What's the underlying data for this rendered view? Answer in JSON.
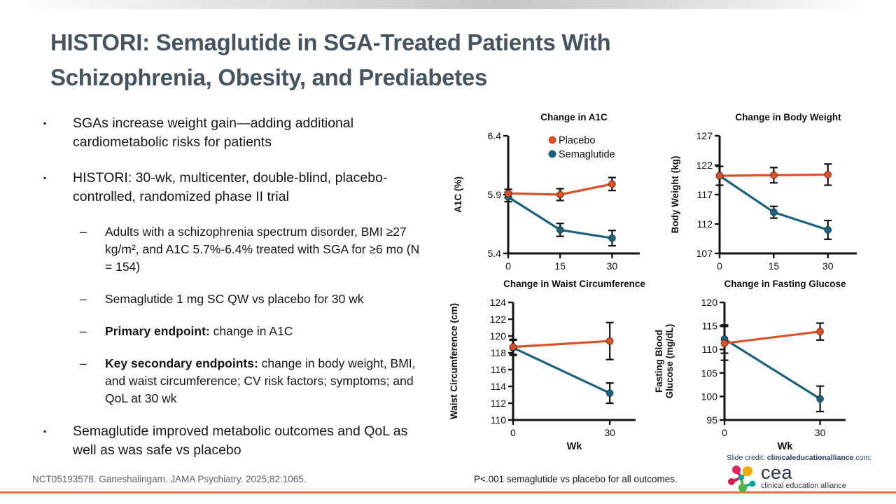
{
  "slide": {
    "title_line1": "HISTORI: Semaglutide in SGA-Treated Patients With",
    "title_line2": "Schizophrenia, Obesity, and Prediabetes",
    "title_color": "#45545E",
    "accent_color": "#E87244"
  },
  "bullets": [
    {
      "level": 1,
      "text": "SGAs increase weight gain—adding additional cardiometabolic risks for patients"
    },
    {
      "level": 1,
      "text": "HISTORI: 30-wk, multicenter, double-blind, placebo-controlled, randomized phase II trial"
    },
    {
      "level": 2,
      "text": "Adults with a schizophrenia spectrum disorder, BMI ≥27 kg/m², and A1C 5.7%-6.4% treated with SGA for ≥6 mo (N = 154)"
    },
    {
      "level": 2,
      "text": "Semaglutide 1 mg SC QW vs placebo for 30 wk"
    },
    {
      "level": 2,
      "bold": "Primary endpoint:",
      "text": " change in A1C"
    },
    {
      "level": 2,
      "bold": "Key secondary endpoints:",
      "text": " change in body weight, BMI, and waist circumference; CV risk factors; symptoms; and QoL at 30 wk"
    },
    {
      "level": 1,
      "text": "Semaglutide improved metabolic outcomes and QoL as well as was safe vs placebo"
    }
  ],
  "chart_data": [
    {
      "type": "line",
      "title": "Change in A1C",
      "ylabel": "A1C (%)",
      "xlabel": "",
      "x": [
        0,
        15,
        30
      ],
      "xticks": [
        "0",
        "15",
        "30"
      ],
      "ylim": [
        5.4,
        6.4
      ],
      "yticks": [
        5.4,
        5.9,
        6.4
      ],
      "legend": true,
      "legend_position": "top-right-inside",
      "grid": false,
      "series": [
        {
          "name": "Placebo",
          "color": "#D85128",
          "values": [
            5.91,
            5.9,
            5.99
          ],
          "err": [
            0.035,
            0.05,
            0.055
          ]
        },
        {
          "name": "Semaglutide",
          "color": "#1B617B",
          "values": [
            5.88,
            5.6,
            5.53
          ],
          "err": [
            0.04,
            0.055,
            0.065
          ]
        }
      ]
    },
    {
      "type": "line",
      "title": "Change in Body Weight",
      "ylabel": "Body Weight (kg)",
      "xlabel": "",
      "x": [
        0,
        15,
        30
      ],
      "xticks": [
        "0",
        "15",
        "30"
      ],
      "ylim": [
        107,
        127
      ],
      "yticks": [
        107,
        112,
        117,
        122,
        127
      ],
      "legend": false,
      "grid": false,
      "series": [
        {
          "name": "Placebo",
          "color": "#D85128",
          "values": [
            120.2,
            120.3,
            120.4
          ],
          "err": [
            1.6,
            1.3,
            1.8
          ]
        },
        {
          "name": "Semaglutide",
          "color": "#1B617B",
          "values": [
            120.2,
            114.0,
            111.0
          ],
          "err": [
            1.6,
            1.0,
            1.6
          ]
        }
      ]
    },
    {
      "type": "line",
      "title": "Change in Waist Circumference",
      "ylabel": "Waist Circumference (cm)",
      "xlabel": "Wk",
      "x": [
        0,
        30
      ],
      "xticks": [
        "0",
        "30"
      ],
      "ylim": [
        110,
        124
      ],
      "yticks": [
        110,
        112,
        114,
        116,
        118,
        120,
        122,
        124
      ],
      "legend": false,
      "grid": false,
      "series": [
        {
          "name": "Placebo",
          "color": "#D85128",
          "values": [
            118.7,
            119.4
          ],
          "err": [
            0.9,
            2.2
          ]
        },
        {
          "name": "Semaglutide",
          "color": "#1B617B",
          "values": [
            118.6,
            113.2
          ],
          "err": [
            0.9,
            1.2
          ]
        }
      ]
    },
    {
      "type": "line",
      "title": "Change in Fasting Glucose",
      "ylabel": [
        "Fasting Blood",
        "Glucose (mg/dL)"
      ],
      "xlabel": "Wk",
      "x": [
        0,
        30
      ],
      "xticks": [
        "0",
        "30"
      ],
      "ylim": [
        95,
        120
      ],
      "yticks": [
        95,
        100,
        105,
        110,
        115,
        120
      ],
      "legend": false,
      "grid": false,
      "series": [
        {
          "name": "Placebo",
          "color": "#D85128",
          "values": [
            111.3,
            113.8
          ],
          "err": [
            3.6,
            1.8
          ]
        },
        {
          "name": "Semaglutide",
          "color": "#1B617B",
          "values": [
            112.2,
            99.5
          ],
          "err": [
            3.0,
            2.7
          ]
        }
      ]
    }
  ],
  "footer": {
    "citation": "NCT05193578. Ganeshalingam. JAMA Psychiatry. 2025;82:1065.",
    "footnote": "P<.001 semaglutide vs placebo for all outcomes.",
    "slide_credit_prefix": "Slide credit: ",
    "slide_credit_bold": "clinicaleducationalliance",
    "slide_credit_suffix": ".com:",
    "logo_text": "cea",
    "logo_subtext": "clinical education alliance"
  }
}
